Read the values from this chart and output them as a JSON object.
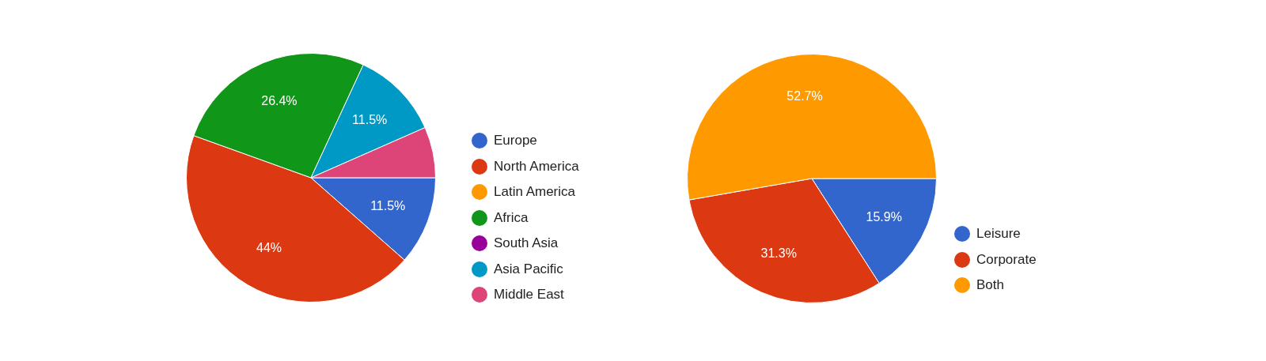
{
  "chart_data": [
    {
      "type": "pie",
      "categories": [
        "Europe",
        "North America",
        "Latin America",
        "Africa",
        "South Asia",
        "Asia Pacific",
        "Middle East"
      ],
      "values": [
        11.5,
        44,
        0,
        26.4,
        0,
        11.5,
        6.6
      ],
      "colors": [
        "#3366cc",
        "#dc3912",
        "#ff9900",
        "#109618",
        "#990099",
        "#0099c6",
        "#dd4477"
      ],
      "value_labels": [
        "11.5%",
        "44%",
        null,
        "26.4%",
        null,
        "11.5%",
        null
      ],
      "legend": "right"
    },
    {
      "type": "pie",
      "categories": [
        "Leisure",
        "Corporate",
        "Both"
      ],
      "values": [
        15.9,
        31.3,
        52.7
      ],
      "colors": [
        "#3366cc",
        "#dc3912",
        "#ff9900"
      ],
      "value_labels": [
        "15.9%",
        "31.3%",
        "52.7%"
      ],
      "legend": "right"
    }
  ]
}
